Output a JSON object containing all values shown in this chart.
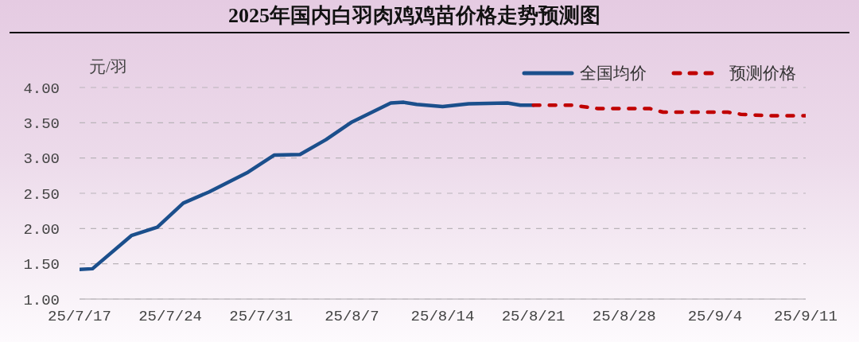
{
  "chart_data": {
    "type": "line",
    "title": "2025年国内白羽肉鸡鸡苗价格走势预测图",
    "ylabel": "元/羽",
    "series": [
      {
        "name": "全国均价",
        "color": "#1b4f8c",
        "line_style": "solid",
        "x": [
          "2025-07-17",
          "2025-07-18",
          "2025-07-21",
          "2025-07-23",
          "2025-07-25",
          "2025-07-27",
          "2025-07-30",
          "2025-08-01",
          "2025-08-03",
          "2025-08-05",
          "2025-08-07",
          "2025-08-10",
          "2025-08-11",
          "2025-08-12",
          "2025-08-14",
          "2025-08-16",
          "2025-08-19",
          "2025-08-20",
          "2025-08-21"
        ],
        "values": [
          1.42,
          1.43,
          1.9,
          2.02,
          2.36,
          2.52,
          2.8,
          3.04,
          3.05,
          3.26,
          3.51,
          3.78,
          3.79,
          3.76,
          3.73,
          3.77,
          3.78,
          3.75,
          3.75
        ]
      },
      {
        "name": "预测价格",
        "color": "#c00000",
        "line_style": "dashed",
        "x": [
          "2025-08-21",
          "2025-08-24",
          "2025-08-26",
          "2025-08-30",
          "2025-08-31",
          "2025-09-05",
          "2025-09-06",
          "2025-09-08",
          "2025-09-11"
        ],
        "values": [
          3.75,
          3.75,
          3.7,
          3.7,
          3.65,
          3.65,
          3.62,
          3.6,
          3.6
        ]
      }
    ],
    "xlim": [
      "2025-07-17",
      "2025-09-11"
    ],
    "xticks": [
      {
        "value": "2025-07-17",
        "label": "25/7/17"
      },
      {
        "value": "2025-07-24",
        "label": "25/7/24"
      },
      {
        "value": "2025-07-31",
        "label": "25/7/31"
      },
      {
        "value": "2025-08-07",
        "label": "25/8/7"
      },
      {
        "value": "2025-08-14",
        "label": "25/8/14"
      },
      {
        "value": "2025-08-21",
        "label": "25/8/21"
      },
      {
        "value": "2025-08-28",
        "label": "25/8/28"
      },
      {
        "value": "2025-09-04",
        "label": "25/9/4"
      },
      {
        "value": "2025-09-11",
        "label": "25/9/11"
      }
    ],
    "ylim": [
      1,
      4
    ],
    "yticks": [
      {
        "value": 1,
        "label": "1.00"
      },
      {
        "value": 1.5,
        "label": "1.50"
      },
      {
        "value": 2,
        "label": "2.00"
      },
      {
        "value": 2.5,
        "label": "2.50"
      },
      {
        "value": 3,
        "label": "3.00"
      },
      {
        "value": 3.5,
        "label": "3.50"
      },
      {
        "value": 4,
        "label": "4.00"
      }
    ],
    "grid": "y",
    "legend": "top right"
  }
}
